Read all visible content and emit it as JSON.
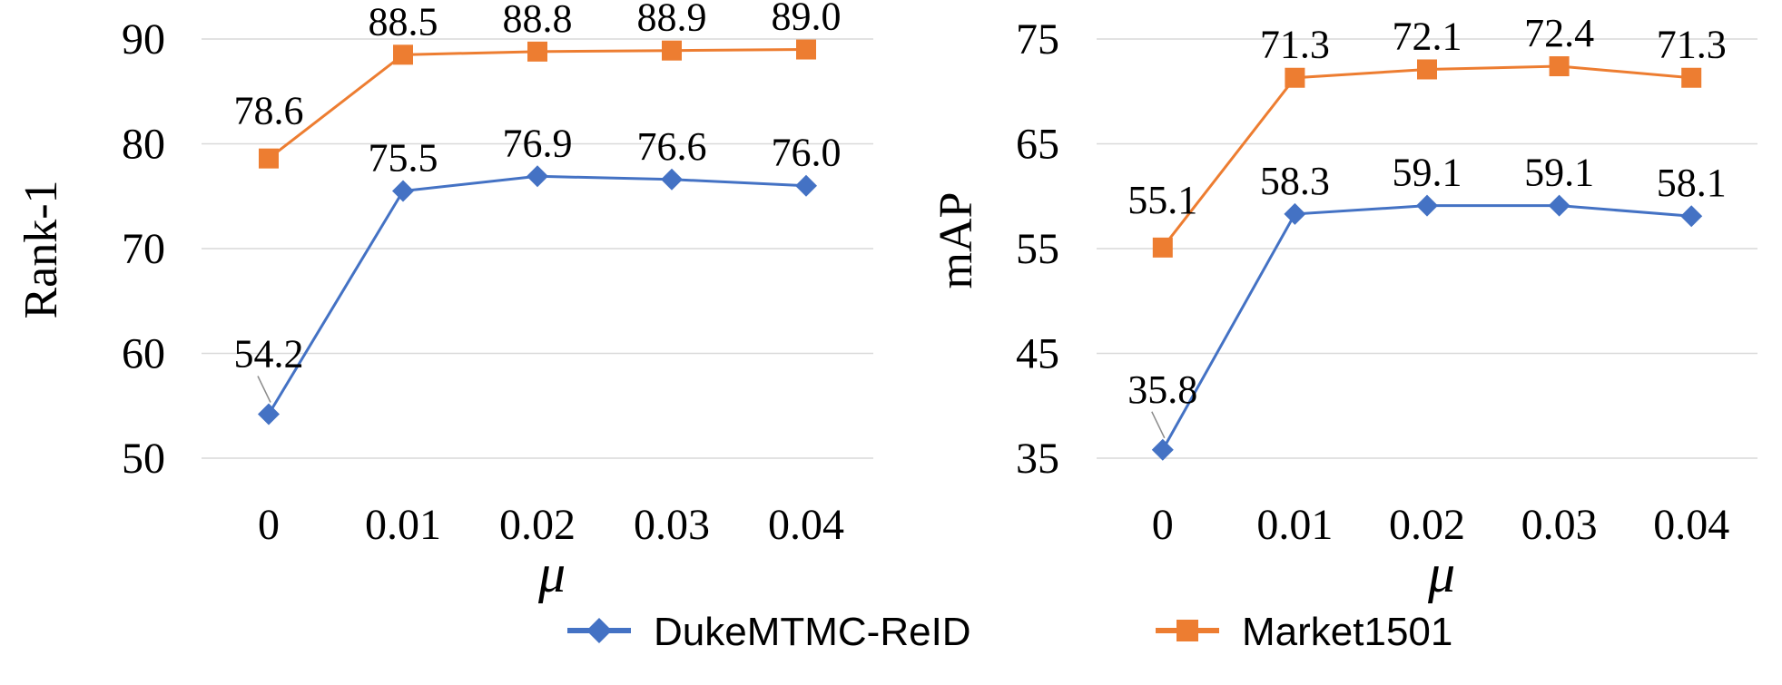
{
  "chart_data": [
    {
      "type": "line",
      "ylabel": "Rank-1",
      "xlabel": "μ",
      "categories": [
        "0",
        "0.01",
        "0.02",
        "0.03",
        "0.04"
      ],
      "ylim": [
        50,
        90
      ],
      "yticks": [
        "50",
        "60",
        "70",
        "80",
        "90"
      ],
      "grid": true,
      "series": [
        {
          "name": "DukeMTMC-ReID",
          "values": [
            54.2,
            75.5,
            76.9,
            76.6,
            76.0
          ],
          "labels": [
            "54.2",
            "75.5",
            "76.9",
            "76.6",
            "76.0"
          ],
          "color": "#4472C4",
          "marker": "diamond"
        },
        {
          "name": "Market1501",
          "values": [
            78.6,
            88.5,
            88.8,
            88.9,
            89.0
          ],
          "labels": [
            "78.6",
            "88.5",
            "88.8",
            "88.9",
            "89.0"
          ],
          "color": "#ED7D31",
          "marker": "square"
        }
      ]
    },
    {
      "type": "line",
      "ylabel": "mAP",
      "xlabel": "μ",
      "categories": [
        "0",
        "0.01",
        "0.02",
        "0.03",
        "0.04"
      ],
      "ylim": [
        35,
        75
      ],
      "yticks": [
        "35",
        "45",
        "55",
        "65",
        "75"
      ],
      "grid": true,
      "series": [
        {
          "name": "DukeMTMC-ReID",
          "values": [
            35.8,
            58.3,
            59.1,
            59.1,
            58.1
          ],
          "labels": [
            "35.8",
            "58.3",
            "59.1",
            "59.1",
            "58.1"
          ],
          "color": "#4472C4",
          "marker": "diamond"
        },
        {
          "name": "Market1501",
          "values": [
            55.1,
            71.3,
            72.1,
            72.4,
            71.3
          ],
          "labels": [
            "55.1",
            "71.3",
            "72.1",
            "72.4",
            "71.3"
          ],
          "color": "#ED7D31",
          "marker": "square"
        }
      ]
    }
  ],
  "legend": {
    "placement": "bottom",
    "items": [
      {
        "name": "DukeMTMC-ReID",
        "color": "#4472C4",
        "marker": "diamond"
      },
      {
        "name": "Market1501",
        "color": "#ED7D31",
        "marker": "square"
      }
    ]
  }
}
